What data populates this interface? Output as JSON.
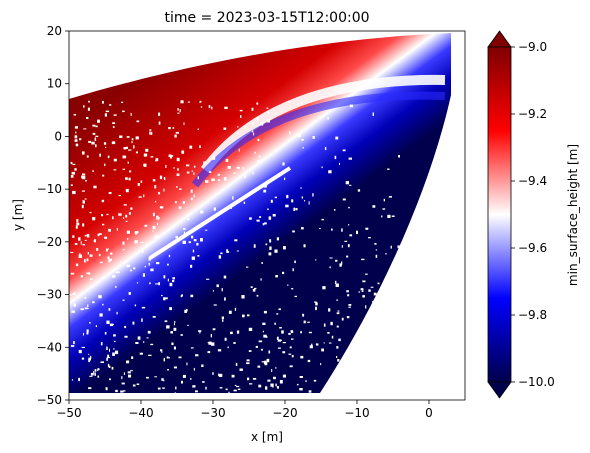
{
  "chart_data": {
    "type": "heatmap",
    "title": "time = 2023-03-15T12:00:00",
    "xlabel": "x [m]",
    "ylabel": "y [m]",
    "xlim": [
      -50,
      5
    ],
    "ylim": [
      -50,
      20
    ],
    "x_ticks": [
      -50,
      -40,
      -30,
      -20,
      -10,
      0
    ],
    "y_ticks": [
      -50,
      -40,
      -30,
      -20,
      -10,
      0,
      10,
      20
    ],
    "x_tick_labels": [
      "−50",
      "−40",
      "−30",
      "−20",
      "−10",
      "0"
    ],
    "y_tick_labels": [
      "−50",
      "−40",
      "−30",
      "−20",
      "−10",
      "0",
      "10",
      "20"
    ],
    "colorbar": {
      "label": "min_surface_height [m]",
      "range": [
        -10.0,
        -9.0
      ],
      "ticks": [
        -10.0,
        -9.8,
        -9.6,
        -9.4,
        -9.2,
        -9.0
      ],
      "tick_labels": [
        "−10.0",
        "−9.8",
        "−9.6",
        "−9.4",
        "−9.2",
        "−9.0"
      ],
      "extend": "both",
      "colormap": "seismic",
      "colors": {
        "low": "#00004c",
        "mid_low": "#0000ff",
        "mid": "#ffffff",
        "mid_high": "#ff0000",
        "high": "#7f0000"
      }
    },
    "grid": false,
    "data_extent": {
      "footprint": "fan-shaped sensor swath opening toward the upper right",
      "dominant_values": {
        "upper_left_region": -9.0,
        "transition_band": -9.5,
        "lower_right_region": -10.0
      }
    }
  }
}
